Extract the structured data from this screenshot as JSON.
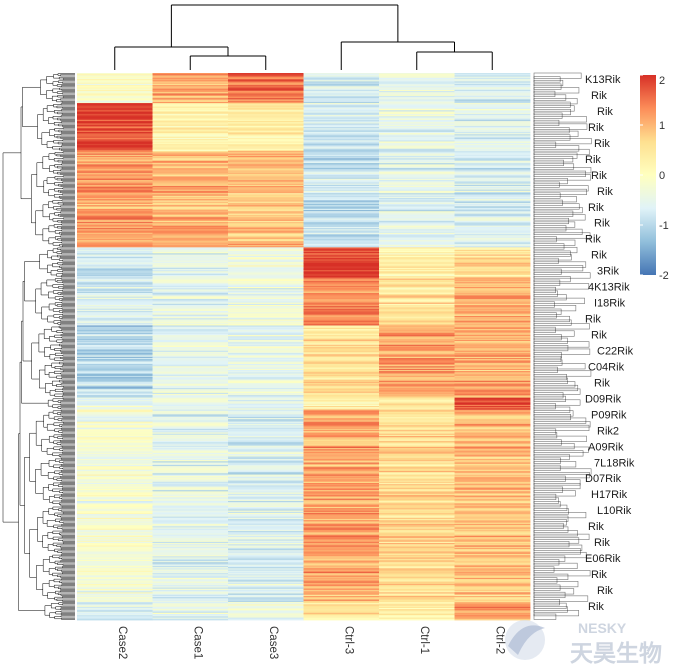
{
  "chart_data": {
    "type": "heatmap",
    "title": "",
    "columns": [
      "Case2",
      "Case1",
      "Case3",
      "Ctrl-3",
      "Ctrl-1",
      "Ctrl-2"
    ],
    "column_groups": [
      {
        "name": "Case",
        "members": [
          "Case2",
          "Case1",
          "Case3"
        ]
      },
      {
        "name": "Ctrl",
        "members": [
          "Ctrl-3",
          "Ctrl-1",
          "Ctrl-2"
        ]
      }
    ],
    "color_scale": {
      "min": -2,
      "max": 2,
      "ticks": [
        "2",
        "1",
        "0",
        "-1",
        "-2"
      ],
      "colors": [
        "#4575b4",
        "#91bfdb",
        "#e0f3f8",
        "#ffffbf",
        "#fee090",
        "#fc8d59",
        "#d73027"
      ]
    },
    "row_clusters": [
      {
        "rows": 25,
        "means": [
          -0.1,
          1.1,
          1.5,
          -0.7,
          -0.5,
          -0.7
        ]
      },
      {
        "rows": 40,
        "means": [
          1.9,
          0.3,
          0.4,
          -0.8,
          -0.5,
          -0.6
        ]
      },
      {
        "rows": 80,
        "means": [
          1.2,
          1.0,
          0.9,
          -0.9,
          -0.6,
          -0.7
        ]
      },
      {
        "rows": 25,
        "means": [
          -0.8,
          -0.5,
          -0.3,
          1.9,
          0.3,
          0.5
        ]
      },
      {
        "rows": 40,
        "means": [
          -0.7,
          -0.5,
          -0.4,
          1.3,
          0.5,
          1.0
        ]
      },
      {
        "rows": 60,
        "means": [
          -1.0,
          -0.5,
          -0.5,
          0.6,
          1.2,
          1.1
        ]
      },
      {
        "rows": 10,
        "means": [
          -0.5,
          -0.4,
          -0.5,
          0.3,
          0.5,
          1.9
        ]
      },
      {
        "rows": 160,
        "means": [
          -0.3,
          -0.6,
          -0.7,
          1.1,
          0.6,
          0.9
        ]
      },
      {
        "rows": 15,
        "means": [
          -0.6,
          -0.5,
          -0.4,
          0.5,
          0.3,
          1.3
        ]
      }
    ],
    "row_labels_visible": [
      "K13Rik",
      "Rik",
      "Rik",
      "Rik",
      "Rik",
      "Rik",
      "Rik",
      "Rik",
      "Rik",
      "Rik",
      "Rik",
      "Rik",
      "3Rik",
      "4K13Rik",
      "I18Rik",
      "Rik",
      "Rik",
      "C22Rik",
      "C04Rik",
      "Rik",
      "D09Rik",
      "P09Rik",
      "Rik2",
      "A09Rik",
      "7L18Rik",
      "D07Rik",
      "H17Rik",
      "L10Rik",
      "Rik",
      "Rik",
      "E06Rik",
      "Rik",
      "Rik",
      "Rik"
    ],
    "watermark": {
      "brand_latin": "NESKY",
      "brand_cjk": "天昊生物"
    }
  }
}
